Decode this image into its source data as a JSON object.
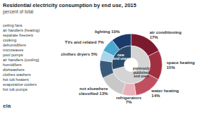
{
  "chart_data": {
    "type": "pie",
    "title": "Residential electricity consumption by end use, 2015",
    "subtitle": "percent of total",
    "series": [
      {
        "categories": [
          "air conditioning\n17%",
          "space heating\n15%",
          "water heating\n14%",
          "refrigerators\n7%",
          "not elsewhere\nclassified 13%",
          null,
          "clothes dryers 5%",
          "TVs and related 7%",
          "lighting 10%"
        ],
        "values": [
          17,
          15,
          14,
          7,
          13,
          9,
          5,
          7,
          10
        ],
        "colors": [
          "#7b1a2e",
          "#a03040",
          "#c05060",
          "#e8b0b8",
          "#c8c8c8",
          "#3a5a7a",
          "#aad4e8",
          "#4aa8d0",
          "#1a3a6a"
        ]
      },
      {
        "categories": [
          "previously\npublished\nend uses",
          "new\nend uses"
        ],
        "values": [
          71,
          29
        ],
        "colors": [
          "#d4d4d4",
          "#2a4a6a"
        ]
      }
    ],
    "annotations": [
      "ceiling fans",
      "air handlers (heating)",
      "separate freezers",
      "cooking",
      "dehumidifiers",
      "microwaves",
      "pool pumps",
      "air handlers (cooling)",
      "humidifiers",
      "dishwashers",
      "clothes washers",
      "hot tub heaters",
      "evaporative coolers",
      "hot tub pumps"
    ],
    "source": "eia"
  }
}
